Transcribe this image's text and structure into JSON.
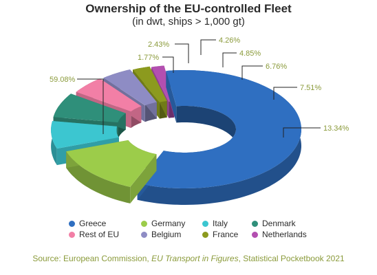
{
  "chart_data": {
    "type": "pie",
    "title": "Ownership of the EU-controlled Fleet",
    "subtitle": "(in dwt, ships > 1,000 gt)",
    "categories": [
      "Greece",
      "Germany",
      "Italy",
      "Denmark",
      "Rest of EU",
      "Belgium",
      "France",
      "Netherlands"
    ],
    "values": [
      59.08,
      13.34,
      7.51,
      6.76,
      4.85,
      4.26,
      2.43,
      1.77
    ],
    "data_labels": [
      "59.08%",
      "13.34%",
      "7.51%",
      "6.76%",
      "4.85%",
      "4.26%",
      "2.43%",
      "1.77%"
    ],
    "colors": [
      "#2f6fc1",
      "#9ccc4a",
      "#3cc6d0",
      "#2f8f7a",
      "#f27fa6",
      "#8e8cc4",
      "#8c9a1e",
      "#b34fb0"
    ],
    "legend_position": "bottom",
    "style": "3d-exploded-donut"
  },
  "source": {
    "prefix": "Source: European Commission, ",
    "italic": "EU Transport in Figures",
    "suffix": ", Statistical Pocketbook 2021"
  }
}
